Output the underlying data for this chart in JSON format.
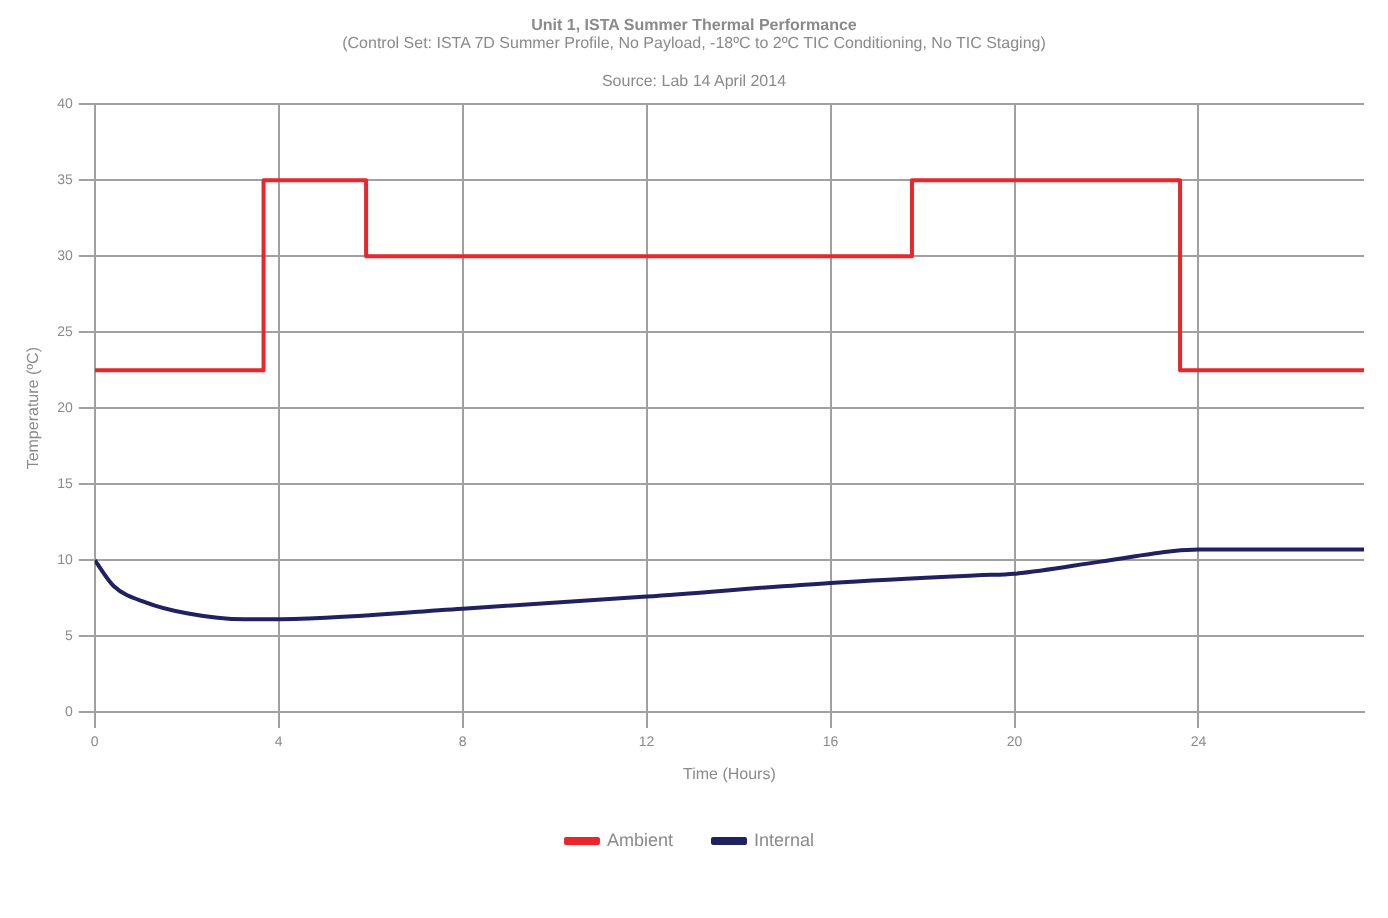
{
  "chart_data": {
    "type": "line",
    "title": "Unit 1, ISTA Summer Thermal Performance",
    "subtitle": "(Control Set: ISTA 7D Summer Profile, No Payload, -18ºC to 2ºC TIC Conditioning, No TIC Staging)",
    "annotations": [
      "Source: Lab 14 April 2014"
    ],
    "xlabel": "Time (Hours)",
    "ylabel": "Temperature (ºC)",
    "xlim": [
      0,
      27.6
    ],
    "xticks": [
      0,
      4,
      8,
      12,
      16,
      20,
      24
    ],
    "ylim": [
      0,
      40
    ],
    "yticks": [
      0,
      5,
      10,
      15,
      20,
      25,
      30,
      35,
      40
    ],
    "grid": true,
    "legend": "bottom",
    "marker": "none",
    "line_style": "solid",
    "series": [
      {
        "name": "Ambient",
        "type": "step",
        "color": "#e8262b",
        "x": [
          0,
          3.67,
          5.9,
          17.77,
          23.6,
          27.6
        ],
        "values": [
          22.5,
          35,
          30,
          35,
          22.5,
          22.5
        ]
      },
      {
        "name": "Internal",
        "color": "#1f2160",
        "x": [
          0,
          0.41,
          1.12,
          2,
          3.25,
          3.77,
          8,
          12,
          16,
          19.2,
          20,
          21.87,
          23.46,
          24,
          27.6
        ],
        "values": [
          10,
          8.3,
          7.2,
          6.5,
          6.1,
          6.1,
          6.8,
          7.6,
          8.5,
          9,
          9.1,
          9.9,
          10.6,
          10.7,
          10.7
        ]
      }
    ]
  }
}
